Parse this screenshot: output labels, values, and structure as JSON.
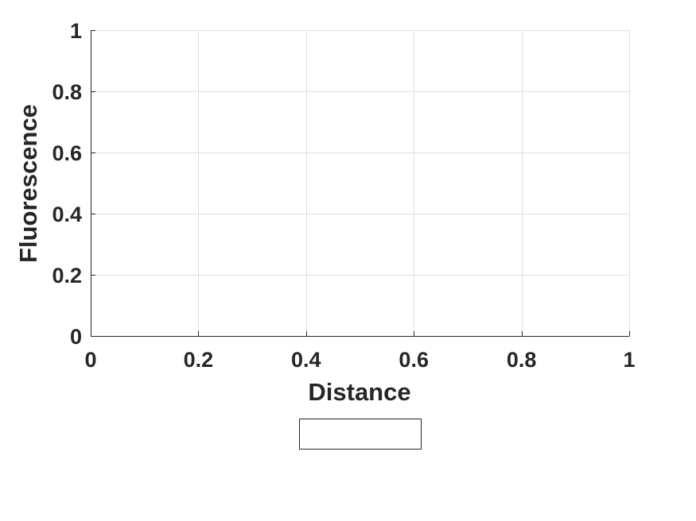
{
  "chart_data": {
    "type": "line",
    "title": "",
    "xlabel": "Distance",
    "ylabel": "Fluorescence",
    "xlim": [
      0,
      1
    ],
    "ylim": [
      0,
      1
    ],
    "xticks": [
      0,
      0.2,
      0.4,
      0.6,
      0.8,
      1
    ],
    "xtick_labels": [
      "0",
      "0.2",
      "0.4",
      "0.6",
      "0.8",
      "1"
    ],
    "yticks": [
      0,
      0.2,
      0.4,
      0.6,
      0.8,
      1
    ],
    "ytick_labels": [
      "0",
      "0.2",
      "0.4",
      "0.6",
      "0.8",
      "1"
    ],
    "grid": true,
    "legend": "bottom-outside",
    "series": []
  }
}
